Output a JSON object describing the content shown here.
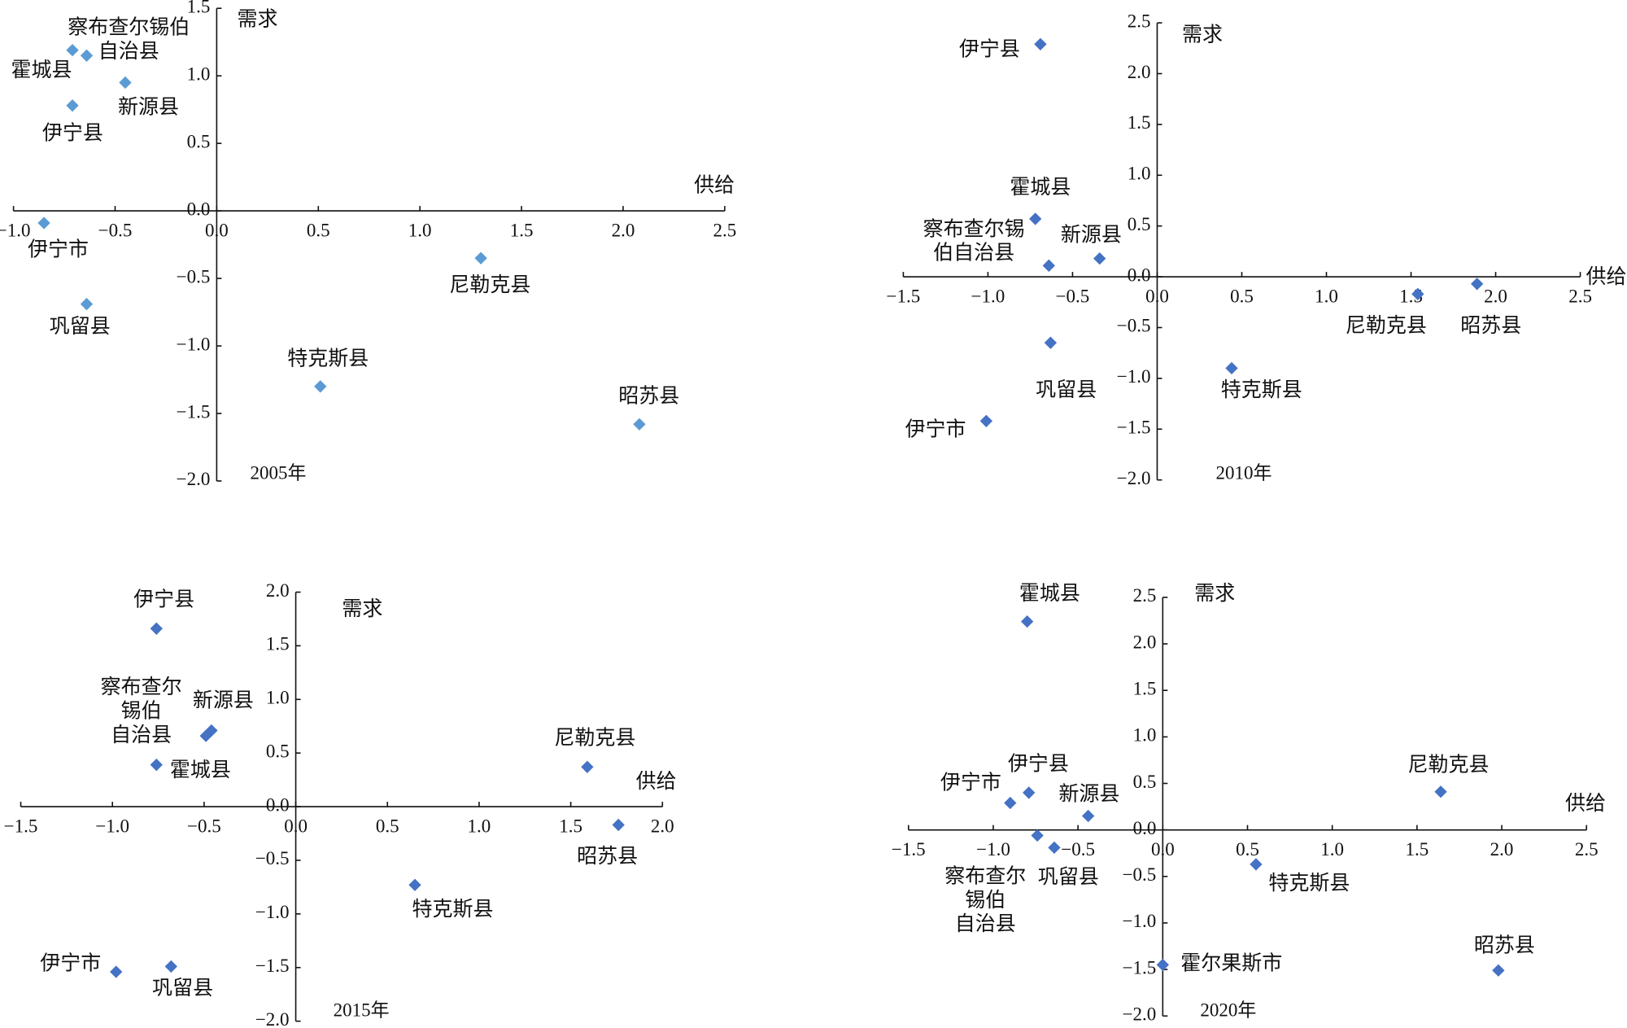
{
  "chart_data": [
    {
      "type": "scatter",
      "title": "2005年",
      "x_label": "供给",
      "y_label": "需求",
      "color": "#5b9bd5",
      "xlim": [
        -1.0,
        2.5
      ],
      "ylim": [
        -2.0,
        1.5
      ],
      "xticks": [
        {
          "value": -1.0,
          "label": "−1.0"
        },
        {
          "value": -0.5,
          "label": "−0.5"
        },
        {
          "value": 0,
          "label": "0.0"
        },
        {
          "value": 0.5,
          "label": "0.5"
        },
        {
          "value": 1.0,
          "label": "1.0"
        },
        {
          "value": 1.5,
          "label": "1.5"
        },
        {
          "value": 2.0,
          "label": "2.0"
        },
        {
          "value": 2.5,
          "label": "2.5"
        }
      ],
      "yticks": [
        {
          "value": -2.0,
          "label": "−2.0"
        },
        {
          "value": -1.5,
          "label": "−1.5"
        },
        {
          "value": -1.0,
          "label": "−1.0"
        },
        {
          "value": -0.5,
          "label": "−0.5"
        },
        {
          "value": 0,
          "label": "0.0"
        },
        {
          "value": 0.5,
          "label": "0.5"
        },
        {
          "value": 1.0,
          "label": "1.0"
        },
        {
          "value": 1.5,
          "label": "1.5"
        }
      ],
      "labels": [
        "霍城县",
        "察布查尔锡伯自治县",
        "新源县",
        "伊宁县",
        "伊宁市",
        "巩留县",
        "特克斯县",
        "尼勒克县",
        "昭苏县"
      ],
      "x": [
        -0.71,
        -0.64,
        -0.45,
        -0.71,
        -0.85,
        -0.64,
        0.51,
        1.3,
        2.08
      ],
      "values": [
        1.19,
        1.15,
        0.95,
        0.78,
        -0.09,
        -0.69,
        -1.3,
        -0.35,
        -1.58
      ]
    },
    {
      "type": "scatter",
      "title": "2010年",
      "x_label": "供给",
      "y_label": "需求",
      "color": "#4472c4",
      "xlim": [
        -1.5,
        2.5
      ],
      "ylim": [
        -2.0,
        2.5
      ],
      "xticks": [
        {
          "value": -1.5,
          "label": "−1.5"
        },
        {
          "value": -1.0,
          "label": "−1.0"
        },
        {
          "value": -0.5,
          "label": "−0.5"
        },
        {
          "value": 0,
          "label": "0.0"
        },
        {
          "value": 0.5,
          "label": "0.5"
        },
        {
          "value": 1.0,
          "label": "1.0"
        },
        {
          "value": 1.5,
          "label": "1.5"
        },
        {
          "value": 2.0,
          "label": "2.0"
        },
        {
          "value": 2.5,
          "label": "2.5"
        }
      ],
      "yticks": [
        {
          "value": -2.0,
          "label": "−2.0"
        },
        {
          "value": -1.5,
          "label": "−1.5"
        },
        {
          "value": -1.0,
          "label": "−1.0"
        },
        {
          "value": -0.5,
          "label": "−0.5"
        },
        {
          "value": 0,
          "label": "0.0"
        },
        {
          "value": 0.5,
          "label": "0.5"
        },
        {
          "value": 1.0,
          "label": "1.0"
        },
        {
          "value": 1.5,
          "label": "1.5"
        },
        {
          "value": 2.0,
          "label": "2.0"
        },
        {
          "value": 2.5,
          "label": "2.5"
        }
      ],
      "labels": [
        "伊宁县",
        "霍城县",
        "察布查尔锡伯自治县",
        "新源县",
        "巩留县",
        "伊宁市",
        "特克斯县",
        "尼勒克县",
        "昭苏县"
      ],
      "x": [
        -0.69,
        -0.72,
        -0.64,
        -0.34,
        -0.63,
        -1.01,
        0.44,
        1.54,
        1.89
      ],
      "values": [
        2.29,
        0.57,
        0.11,
        0.18,
        -0.65,
        -1.42,
        -0.9,
        -0.17,
        -0.07
      ]
    },
    {
      "type": "scatter",
      "title": "2015年",
      "x_label": "供给",
      "y_label": "需求",
      "color": "#4472c4",
      "xlim": [
        -1.5,
        2.0
      ],
      "ylim": [
        -2.0,
        2.0
      ],
      "xticks": [
        {
          "value": -1.5,
          "label": "−1.5"
        },
        {
          "value": -1.0,
          "label": "−1.0"
        },
        {
          "value": -0.5,
          "label": "−0.5"
        },
        {
          "value": 0,
          "label": "0.0"
        },
        {
          "value": 0.5,
          "label": "0.5"
        },
        {
          "value": 1.0,
          "label": "1.0"
        },
        {
          "value": 1.5,
          "label": "1.5"
        },
        {
          "value": 2.0,
          "label": "2.0"
        }
      ],
      "yticks": [
        {
          "value": -2.0,
          "label": "−2.0"
        },
        {
          "value": -1.5,
          "label": "−1.5"
        },
        {
          "value": -1.0,
          "label": "−1.0"
        },
        {
          "value": -0.5,
          "label": "−0.5"
        },
        {
          "value": 0,
          "label": "0.0"
        },
        {
          "value": 0.5,
          "label": "0.5"
        },
        {
          "value": 1.0,
          "label": "1.0"
        },
        {
          "value": 1.5,
          "label": "1.5"
        },
        {
          "value": 2.0,
          "label": "2.0"
        }
      ],
      "labels": [
        "伊宁县",
        "察布查尔锡伯自治县",
        "新源县",
        "霍城县",
        "尼勒克县",
        "昭苏县",
        "特克斯县",
        "巩留县",
        "伊宁市"
      ],
      "x": [
        -0.76,
        -0.49,
        -0.46,
        -0.76,
        1.59,
        1.76,
        0.65,
        -0.68,
        -0.98
      ],
      "values": [
        1.66,
        0.66,
        0.71,
        0.39,
        0.37,
        -0.17,
        -0.73,
        -1.49,
        -1.54
      ]
    },
    {
      "type": "scatter",
      "title": "2020年",
      "x_label": "供给",
      "y_label": "需求",
      "color": "#4472c4",
      "xlim": [
        -1.5,
        2.5
      ],
      "ylim": [
        -2.0,
        2.5
      ],
      "xticks": [
        {
          "value": -1.5,
          "label": "−1.5"
        },
        {
          "value": -1.0,
          "label": "−1.0"
        },
        {
          "value": -0.5,
          "label": "−0.5"
        },
        {
          "value": 0,
          "label": "0.0"
        },
        {
          "value": 0.5,
          "label": "0.5"
        },
        {
          "value": 1.0,
          "label": "1.0"
        },
        {
          "value": 1.5,
          "label": "1.5"
        },
        {
          "value": 2.0,
          "label": "2.0"
        },
        {
          "value": 2.5,
          "label": "2.5"
        }
      ],
      "yticks": [
        {
          "value": -2.0,
          "label": "−2.0"
        },
        {
          "value": -1.5,
          "label": "−1.5"
        },
        {
          "value": -1.0,
          "label": "−1.0"
        },
        {
          "value": -0.5,
          "label": "−0.5"
        },
        {
          "value": 0,
          "label": "0.0"
        },
        {
          "value": 0.5,
          "label": "0.5"
        },
        {
          "value": 1.0,
          "label": "1.0"
        },
        {
          "value": 1.5,
          "label": "1.5"
        },
        {
          "value": 2.0,
          "label": "2.0"
        },
        {
          "value": 2.5,
          "label": "2.5"
        }
      ],
      "labels": [
        "霍城县",
        "伊宁市",
        "伊宁县",
        "新源县",
        "察布查尔锡伯自治县",
        "巩留县",
        "尼勒克县",
        "特克斯县",
        "霍尔果斯市",
        "昭苏县"
      ],
      "x": [
        -0.8,
        -0.9,
        -0.79,
        -0.44,
        -0.74,
        -0.64,
        1.64,
        0.55,
        0.0,
        1.98
      ],
      "values": [
        2.24,
        0.29,
        0.4,
        0.15,
        -0.06,
        -0.19,
        0.41,
        -0.37,
        -1.45,
        -1.51
      ]
    }
  ]
}
